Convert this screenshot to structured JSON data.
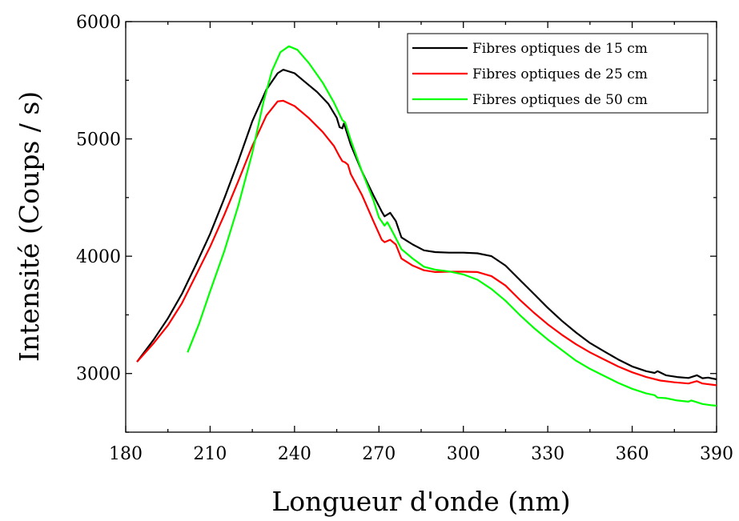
{
  "chart_data": {
    "type": "line",
    "title": "",
    "xlabel": "Longueur d'onde (nm)",
    "ylabel": "Intensité (Coups / s)",
    "xlim": [
      180,
      390
    ],
    "ylim": [
      2500,
      6000
    ],
    "xticks": [
      180,
      210,
      240,
      270,
      300,
      330,
      360,
      390
    ],
    "yticks": [
      3000,
      4000,
      5000,
      6000
    ],
    "xtick_labels": [
      "180",
      "210",
      "240",
      "270",
      "300",
      "330",
      "360",
      "390"
    ],
    "ytick_labels": [
      "3000",
      "4000",
      "5000",
      "6000"
    ],
    "grid": false,
    "legend_position": "top-right",
    "series": [
      {
        "name": "Fibres optiques de 15 cm",
        "color": "#000000",
        "points": [
          [
            184,
            3100
          ],
          [
            190,
            3290
          ],
          [
            195,
            3470
          ],
          [
            200,
            3680
          ],
          [
            205,
            3930
          ],
          [
            210,
            4190
          ],
          [
            215,
            4490
          ],
          [
            220,
            4810
          ],
          [
            225,
            5150
          ],
          [
            230,
            5420
          ],
          [
            234,
            5560
          ],
          [
            236,
            5590
          ],
          [
            240,
            5560
          ],
          [
            244,
            5480
          ],
          [
            248,
            5400
          ],
          [
            252,
            5300
          ],
          [
            255,
            5180
          ],
          [
            256,
            5100
          ],
          [
            257,
            5090
          ],
          [
            257.5,
            5130
          ],
          [
            258,
            5100
          ],
          [
            260,
            4950
          ],
          [
            264,
            4720
          ],
          [
            268,
            4520
          ],
          [
            271,
            4380
          ],
          [
            272,
            4340
          ],
          [
            274,
            4370
          ],
          [
            276,
            4300
          ],
          [
            278,
            4160
          ],
          [
            282,
            4100
          ],
          [
            286,
            4050
          ],
          [
            290,
            4035
          ],
          [
            295,
            4030
          ],
          [
            300,
            4030
          ],
          [
            305,
            4025
          ],
          [
            310,
            4000
          ],
          [
            315,
            3920
          ],
          [
            320,
            3800
          ],
          [
            325,
            3680
          ],
          [
            330,
            3560
          ],
          [
            335,
            3450
          ],
          [
            340,
            3350
          ],
          [
            345,
            3260
          ],
          [
            350,
            3190
          ],
          [
            355,
            3120
          ],
          [
            360,
            3060
          ],
          [
            365,
            3020
          ],
          [
            368,
            3005
          ],
          [
            369,
            3020
          ],
          [
            372,
            2985
          ],
          [
            376,
            2970
          ],
          [
            380,
            2962
          ],
          [
            383,
            2985
          ],
          [
            385,
            2960
          ],
          [
            387,
            2965
          ],
          [
            390,
            2950
          ]
        ]
      },
      {
        "name": "Fibres optiques de 25 cm",
        "color": "#ff0000",
        "points": [
          [
            184,
            3100
          ],
          [
            190,
            3260
          ],
          [
            195,
            3410
          ],
          [
            200,
            3600
          ],
          [
            205,
            3840
          ],
          [
            210,
            4080
          ],
          [
            215,
            4350
          ],
          [
            220,
            4640
          ],
          [
            225,
            4940
          ],
          [
            230,
            5200
          ],
          [
            234,
            5320
          ],
          [
            236,
            5325
          ],
          [
            240,
            5280
          ],
          [
            245,
            5180
          ],
          [
            250,
            5060
          ],
          [
            254,
            4940
          ],
          [
            256,
            4850
          ],
          [
            257,
            4810
          ],
          [
            258,
            4800
          ],
          [
            259,
            4780
          ],
          [
            260,
            4700
          ],
          [
            264,
            4520
          ],
          [
            268,
            4300
          ],
          [
            271,
            4140
          ],
          [
            272,
            4120
          ],
          [
            274,
            4140
          ],
          [
            276,
            4100
          ],
          [
            278,
            3980
          ],
          [
            282,
            3920
          ],
          [
            286,
            3880
          ],
          [
            290,
            3865
          ],
          [
            295,
            3868
          ],
          [
            300,
            3868
          ],
          [
            305,
            3865
          ],
          [
            310,
            3830
          ],
          [
            315,
            3750
          ],
          [
            320,
            3630
          ],
          [
            325,
            3520
          ],
          [
            330,
            3420
          ],
          [
            335,
            3330
          ],
          [
            340,
            3250
          ],
          [
            345,
            3180
          ],
          [
            350,
            3120
          ],
          [
            355,
            3060
          ],
          [
            360,
            3010
          ],
          [
            365,
            2970
          ],
          [
            370,
            2940
          ],
          [
            375,
            2925
          ],
          [
            380,
            2915
          ],
          [
            383,
            2935
          ],
          [
            385,
            2915
          ],
          [
            390,
            2900
          ]
        ]
      },
      {
        "name": "Fibres optiques de 50 cm",
        "color": "#00ff00",
        "points": [
          [
            202,
            3180
          ],
          [
            206,
            3420
          ],
          [
            210,
            3700
          ],
          [
            215,
            4040
          ],
          [
            220,
            4430
          ],
          [
            225,
            4880
          ],
          [
            229,
            5320
          ],
          [
            232,
            5580
          ],
          [
            235,
            5740
          ],
          [
            238,
            5790
          ],
          [
            241,
            5760
          ],
          [
            245,
            5650
          ],
          [
            250,
            5480
          ],
          [
            254,
            5310
          ],
          [
            257,
            5160
          ],
          [
            258,
            5140
          ],
          [
            260,
            4990
          ],
          [
            264,
            4720
          ],
          [
            268,
            4480
          ],
          [
            270,
            4330
          ],
          [
            272,
            4260
          ],
          [
            273,
            4290
          ],
          [
            275,
            4200
          ],
          [
            278,
            4060
          ],
          [
            282,
            3980
          ],
          [
            286,
            3910
          ],
          [
            290,
            3885
          ],
          [
            295,
            3870
          ],
          [
            300,
            3845
          ],
          [
            305,
            3800
          ],
          [
            310,
            3720
          ],
          [
            315,
            3620
          ],
          [
            320,
            3500
          ],
          [
            325,
            3390
          ],
          [
            330,
            3290
          ],
          [
            335,
            3200
          ],
          [
            340,
            3110
          ],
          [
            345,
            3040
          ],
          [
            350,
            2980
          ],
          [
            355,
            2920
          ],
          [
            360,
            2870
          ],
          [
            365,
            2830
          ],
          [
            368,
            2815
          ],
          [
            369,
            2795
          ],
          [
            372,
            2790
          ],
          [
            376,
            2770
          ],
          [
            380,
            2760
          ],
          [
            381,
            2770
          ],
          [
            383,
            2755
          ],
          [
            385,
            2740
          ],
          [
            388,
            2730
          ],
          [
            390,
            2725
          ]
        ]
      }
    ]
  }
}
